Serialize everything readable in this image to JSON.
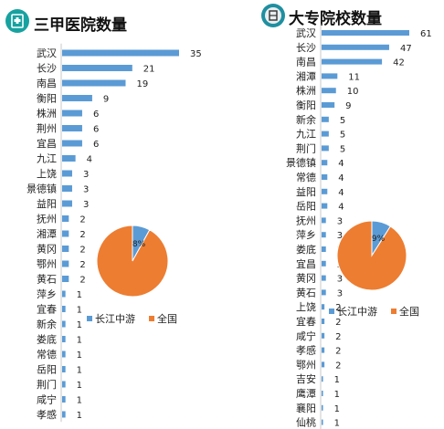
{
  "chart_data": [
    {
      "id": "hospitals",
      "type": "bar",
      "orientation": "horizontal",
      "title": "三甲医院数量",
      "icon": "hospital-icon",
      "categories": [
        "武汉",
        "长沙",
        "南昌",
        "衡阳",
        "株洲",
        "荆州",
        "宜昌",
        "九江",
        "上饶",
        "景德镇",
        "益阳",
        "抚州",
        "湘潭",
        "黄冈",
        "鄂州",
        "黄石",
        "萍乡",
        "宜春",
        "新余",
        "娄底",
        "常德",
        "岳阳",
        "荆门",
        "咸宁",
        "孝感"
      ],
      "values": [
        35,
        21,
        19,
        9,
        6,
        6,
        6,
        4,
        3,
        3,
        3,
        2,
        2,
        2,
        2,
        2,
        1,
        1,
        1,
        1,
        1,
        1,
        1,
        1,
        1
      ],
      "bar_color": "#5b9bd5",
      "pie": {
        "type": "pie",
        "slices": [
          {
            "name": "长江中游",
            "value": 8,
            "color": "#5b9bd5"
          },
          {
            "name": "全国",
            "value": 92,
            "color": "#ed7d31"
          }
        ],
        "label": "8%",
        "legend_position": "bottom"
      }
    },
    {
      "id": "universities",
      "type": "bar",
      "orientation": "horizontal",
      "title": "大专院校数量",
      "icon": "school-icon",
      "categories": [
        "武汉",
        "长沙",
        "南昌",
        "湘潭",
        "株洲",
        "衡阳",
        "新余",
        "九江",
        "荆门",
        "景德镇",
        "常德",
        "益阳",
        "岳阳",
        "抚州",
        "萍乡",
        "娄底",
        "宜昌",
        "黄冈",
        "黄石",
        "上饶",
        "宜春",
        "咸宁",
        "孝感",
        "鄂州",
        "吉安",
        "鹰潭",
        "襄阳",
        "仙桃"
      ],
      "values": [
        61,
        47,
        42,
        11,
        10,
        9,
        5,
        5,
        5,
        4,
        4,
        4,
        4,
        3,
        3,
        3,
        3,
        3,
        3,
        2,
        2,
        2,
        2,
        2,
        1,
        1,
        1,
        1
      ],
      "bar_color": "#5b9bd5",
      "pie": {
        "type": "pie",
        "slices": [
          {
            "name": "长江中游",
            "value": 9,
            "color": "#5b9bd5"
          },
          {
            "name": "全国",
            "value": 91,
            "color": "#ed7d31"
          }
        ],
        "label": "9%",
        "legend_position": "bottom"
      }
    }
  ]
}
